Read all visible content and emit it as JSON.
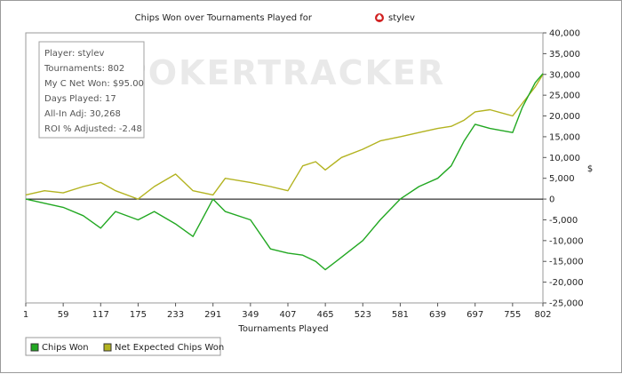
{
  "chart_data": {
    "type": "line",
    "title": "Chips Won over Tournaments Played for",
    "player_name": "stylev",
    "xlabel": "Tournaments Played",
    "ylabel": "$",
    "xlim": [
      1,
      802
    ],
    "ylim": [
      -25000,
      40000
    ],
    "x_ticks": [
      1,
      59,
      117,
      175,
      233,
      291,
      349,
      407,
      465,
      523,
      581,
      639,
      697,
      755,
      802
    ],
    "y_ticks": [
      40000,
      35000,
      30000,
      25000,
      20000,
      15000,
      10000,
      5000,
      0,
      -5000,
      -10000,
      -15000,
      -20000,
      -25000
    ],
    "y_tick_labels": [
      "40,000",
      "35,000",
      "30,000",
      "25,000",
      "20,000",
      "15,000",
      "10,000",
      "5,000",
      "0",
      "-5,000",
      "-10,000",
      "-15,000",
      "-20,000",
      "-25,000"
    ],
    "x_tick_labels": [
      "1",
      "59",
      "117",
      "175",
      "233",
      "291",
      "349",
      "407",
      "465",
      "523",
      "581",
      "639",
      "697",
      "755",
      "802"
    ],
    "grid": false,
    "legend_position": "bottom-left",
    "watermark": "POKERTRACKER",
    "stats": [
      "Player: stylev",
      "Tournaments: 802",
      "My C Net Won: $95.00",
      "Days Played: 17",
      "All-In Adj: 30,268",
      "ROI % Adjusted: -2.48"
    ],
    "series": [
      {
        "name": "Chips Won",
        "color": "#22a822",
        "x": [
          1,
          30,
          59,
          90,
          117,
          140,
          175,
          200,
          233,
          260,
          291,
          310,
          349,
          380,
          407,
          430,
          450,
          465,
          490,
          523,
          550,
          581,
          610,
          639,
          660,
          680,
          697,
          720,
          755,
          770,
          790,
          802
        ],
        "y": [
          0,
          -1000,
          -2000,
          -4000,
          -7000,
          -3000,
          -5000,
          -3000,
          -6000,
          -9000,
          0,
          -3000,
          -5000,
          -12000,
          -13000,
          -13500,
          -15000,
          -17000,
          -14000,
          -10000,
          -5000,
          0,
          3000,
          5000,
          8000,
          14000,
          18000,
          17000,
          16000,
          22000,
          28000,
          30200
        ]
      },
      {
        "name": "Net Expected Chips Won",
        "color": "#b3b320",
        "x": [
          1,
          30,
          59,
          90,
          117,
          140,
          175,
          200,
          233,
          260,
          291,
          310,
          349,
          380,
          407,
          430,
          450,
          465,
          490,
          523,
          550,
          581,
          610,
          639,
          660,
          680,
          697,
          720,
          755,
          770,
          790,
          802
        ],
        "y": [
          1000,
          2000,
          1500,
          3000,
          4000,
          2000,
          0,
          3000,
          6000,
          2000,
          1000,
          5000,
          4000,
          3000,
          2000,
          8000,
          9000,
          7000,
          10000,
          12000,
          14000,
          15000,
          16000,
          17000,
          17500,
          19000,
          21000,
          21500,
          20000,
          23000,
          27000,
          30000
        ]
      }
    ]
  }
}
